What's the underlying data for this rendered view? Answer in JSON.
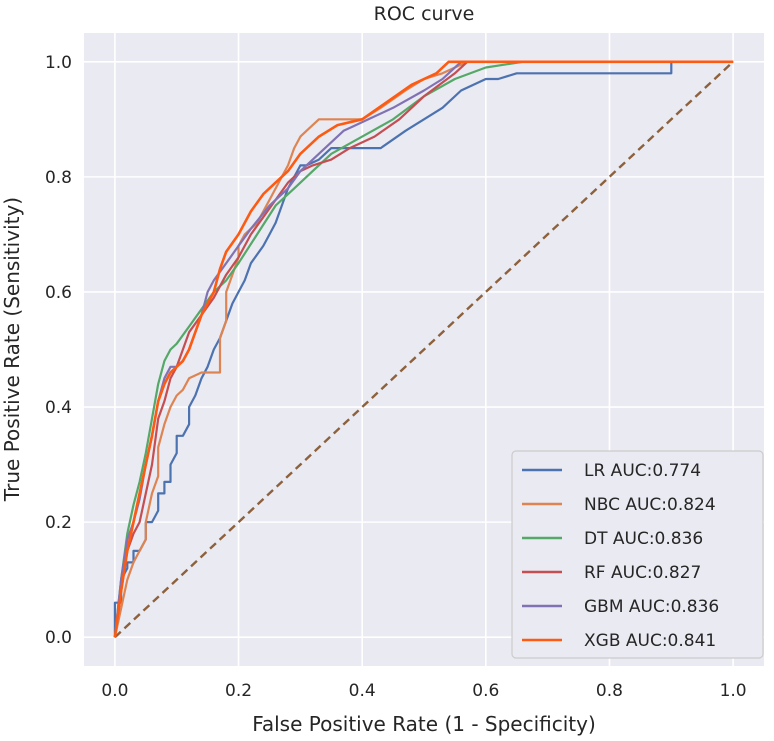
{
  "chart_data": {
    "type": "line",
    "title": "ROC curve",
    "xlabel": "False Positive Rate (1 - Specificity)",
    "ylabel": "True Positive Rate (Sensitivity)",
    "xlim": [
      -0.05,
      1.05
    ],
    "ylim": [
      -0.05,
      1.05
    ],
    "xticks": [
      "0.0",
      "0.2",
      "0.4",
      "0.6",
      "0.8",
      "1.0"
    ],
    "yticks": [
      "0.0",
      "0.2",
      "0.4",
      "0.6",
      "0.8",
      "1.0"
    ],
    "grid": true,
    "legend_position": "lower right",
    "series": [
      {
        "name": "LR AUC:0.774",
        "color": "#4c72b0",
        "x": [
          0.0,
          0.0,
          0.01,
          0.01,
          0.02,
          0.02,
          0.03,
          0.03,
          0.04,
          0.05,
          0.05,
          0.06,
          0.07,
          0.07,
          0.08,
          0.08,
          0.09,
          0.09,
          0.1,
          0.1,
          0.11,
          0.12,
          0.12,
          0.13,
          0.14,
          0.15,
          0.16,
          0.17,
          0.18,
          0.19,
          0.2,
          0.21,
          0.22,
          0.24,
          0.25,
          0.26,
          0.27,
          0.28,
          0.29,
          0.3,
          0.31,
          0.33,
          0.35,
          0.38,
          0.4,
          0.43,
          0.47,
          0.5,
          0.53,
          0.56,
          0.6,
          0.62,
          0.65,
          0.9,
          0.9,
          1.0
        ],
        "y": [
          0.0,
          0.06,
          0.06,
          0.1,
          0.12,
          0.13,
          0.13,
          0.15,
          0.15,
          0.17,
          0.2,
          0.2,
          0.22,
          0.25,
          0.25,
          0.27,
          0.27,
          0.3,
          0.32,
          0.35,
          0.35,
          0.37,
          0.4,
          0.42,
          0.45,
          0.47,
          0.5,
          0.52,
          0.55,
          0.58,
          0.6,
          0.62,
          0.65,
          0.68,
          0.7,
          0.72,
          0.75,
          0.78,
          0.8,
          0.82,
          0.82,
          0.83,
          0.85,
          0.85,
          0.85,
          0.85,
          0.88,
          0.9,
          0.92,
          0.95,
          0.97,
          0.97,
          0.98,
          0.98,
          1.0,
          1.0
        ]
      },
      {
        "name": "NBC AUC:0.824",
        "color": "#dd8452",
        "x": [
          0.0,
          0.01,
          0.02,
          0.03,
          0.04,
          0.05,
          0.05,
          0.06,
          0.07,
          0.07,
          0.08,
          0.09,
          0.1,
          0.11,
          0.12,
          0.14,
          0.17,
          0.17,
          0.18,
          0.18,
          0.19,
          0.2,
          0.2,
          0.21,
          0.23,
          0.25,
          0.27,
          0.28,
          0.29,
          0.3,
          0.31,
          0.33,
          0.35,
          0.38,
          0.4,
          0.43,
          0.47,
          0.5,
          0.53,
          0.57,
          1.0
        ],
        "y": [
          0.0,
          0.05,
          0.1,
          0.13,
          0.15,
          0.17,
          0.2,
          0.25,
          0.28,
          0.33,
          0.37,
          0.4,
          0.42,
          0.43,
          0.45,
          0.46,
          0.46,
          0.52,
          0.55,
          0.6,
          0.63,
          0.66,
          0.68,
          0.7,
          0.72,
          0.76,
          0.8,
          0.82,
          0.85,
          0.87,
          0.88,
          0.9,
          0.9,
          0.9,
          0.9,
          0.92,
          0.95,
          0.97,
          0.98,
          1.0,
          1.0
        ]
      },
      {
        "name": "DT AUC:0.836",
        "color": "#55a868",
        "x": [
          0.0,
          0.01,
          0.02,
          0.03,
          0.04,
          0.05,
          0.06,
          0.07,
          0.08,
          0.09,
          0.1,
          0.12,
          0.14,
          0.16,
          0.18,
          0.2,
          0.23,
          0.26,
          0.29,
          0.32,
          0.35,
          0.4,
          0.45,
          0.5,
          0.55,
          0.6,
          0.66,
          1.0
        ],
        "y": [
          0.0,
          0.1,
          0.18,
          0.23,
          0.27,
          0.32,
          0.38,
          0.44,
          0.48,
          0.5,
          0.51,
          0.54,
          0.57,
          0.6,
          0.62,
          0.65,
          0.7,
          0.75,
          0.78,
          0.81,
          0.84,
          0.87,
          0.9,
          0.94,
          0.97,
          0.99,
          1.0,
          1.0
        ]
      },
      {
        "name": "RF AUC:0.827",
        "color": "#c44e52",
        "x": [
          0.0,
          0.01,
          0.02,
          0.03,
          0.04,
          0.05,
          0.06,
          0.07,
          0.08,
          0.09,
          0.1,
          0.11,
          0.12,
          0.14,
          0.16,
          0.17,
          0.18,
          0.2,
          0.22,
          0.24,
          0.26,
          0.28,
          0.3,
          0.32,
          0.35,
          0.38,
          0.42,
          0.46,
          0.5,
          0.55,
          0.57,
          1.0
        ],
        "y": [
          0.0,
          0.08,
          0.15,
          0.18,
          0.2,
          0.25,
          0.3,
          0.38,
          0.41,
          0.45,
          0.47,
          0.5,
          0.53,
          0.56,
          0.59,
          0.61,
          0.63,
          0.66,
          0.7,
          0.73,
          0.76,
          0.79,
          0.81,
          0.82,
          0.83,
          0.85,
          0.87,
          0.9,
          0.94,
          0.98,
          1.0,
          1.0
        ]
      },
      {
        "name": "GBM AUC:0.836",
        "color": "#8172b3",
        "x": [
          0.0,
          0.01,
          0.02,
          0.03,
          0.04,
          0.05,
          0.06,
          0.07,
          0.08,
          0.09,
          0.1,
          0.11,
          0.12,
          0.13,
          0.14,
          0.15,
          0.16,
          0.18,
          0.2,
          0.22,
          0.25,
          0.28,
          0.3,
          0.33,
          0.37,
          0.41,
          0.45,
          0.5,
          0.53,
          0.56,
          1.0
        ],
        "y": [
          0.0,
          0.1,
          0.17,
          0.2,
          0.24,
          0.3,
          0.35,
          0.41,
          0.45,
          0.47,
          0.47,
          0.48,
          0.5,
          0.53,
          0.56,
          0.6,
          0.62,
          0.65,
          0.68,
          0.71,
          0.75,
          0.78,
          0.81,
          0.84,
          0.88,
          0.9,
          0.92,
          0.95,
          0.97,
          1.0,
          1.0
        ]
      },
      {
        "name": "XGB AUC:0.841",
        "color": "#fd5a12",
        "x": [
          0.0,
          0.01,
          0.02,
          0.03,
          0.04,
          0.05,
          0.06,
          0.07,
          0.08,
          0.09,
          0.1,
          0.11,
          0.12,
          0.13,
          0.14,
          0.16,
          0.17,
          0.18,
          0.2,
          0.22,
          0.24,
          0.26,
          0.28,
          0.3,
          0.33,
          0.36,
          0.4,
          0.44,
          0.48,
          0.52,
          0.54,
          1.0
        ],
        "y": [
          0.0,
          0.08,
          0.15,
          0.2,
          0.25,
          0.3,
          0.35,
          0.41,
          0.44,
          0.46,
          0.47,
          0.48,
          0.5,
          0.53,
          0.56,
          0.6,
          0.64,
          0.67,
          0.7,
          0.74,
          0.77,
          0.79,
          0.81,
          0.84,
          0.87,
          0.89,
          0.9,
          0.93,
          0.96,
          0.98,
          1.0,
          1.0
        ]
      }
    ],
    "reference_line": {
      "color": "#8c613c",
      "x": [
        0.0,
        1.0
      ],
      "y": [
        0.0,
        1.0
      ]
    }
  }
}
